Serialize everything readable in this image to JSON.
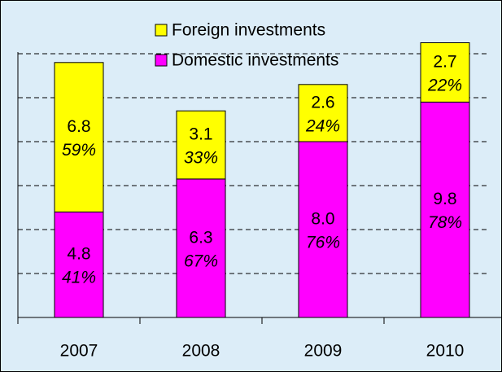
{
  "chart_data": {
    "type": "stacked_bar",
    "categories": [
      "2007",
      "2008",
      "2009",
      "2010"
    ],
    "series": [
      {
        "name": "Domestic investments",
        "color": "#ff00ff",
        "values": [
          4.8,
          6.3,
          8,
          9.8
        ],
        "value_labels": [
          "4.8",
          "6.3",
          "8.0",
          "9.8"
        ],
        "percent_labels": [
          "41%",
          "67%",
          "76%",
          "78%"
        ]
      },
      {
        "name": "Foreign investments",
        "color": "#ffff00",
        "values": [
          6.8,
          3.1,
          2.6,
          2.7
        ],
        "value_labels": [
          "6.8",
          "3.1",
          "2.6",
          "2.7"
        ],
        "percent_labels": [
          "59%",
          "33%",
          "24%",
          "22%"
        ]
      }
    ],
    "ylim": [
      0,
      14.4
    ],
    "yticks": [
      0,
      2,
      4,
      6,
      8,
      10,
      12
    ],
    "grid": true
  }
}
